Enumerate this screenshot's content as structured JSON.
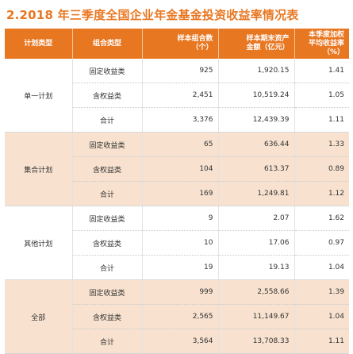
{
  "title": "2.2018 年三季度全国企业年金基金投资收益率情况表",
  "headers": {
    "plan_type": "计划类型",
    "portfolio_type": "组合类型",
    "count_line1": "样本组合数",
    "count_line2": "（个）",
    "assets_line1": "样本期末资产",
    "assets_line2": "金额（亿元）",
    "return_line1": "本季度加权",
    "return_line2": "平均收益率（%）"
  },
  "groups": [
    {
      "plan": "单一计划",
      "rows": [
        {
          "type": "固定收益类",
          "count": "925",
          "assets": "1,920.15",
          "return": "1.41"
        },
        {
          "type": "含权益类",
          "count": "2,451",
          "assets": "10,519.24",
          "return": "1.05"
        },
        {
          "type": "合计",
          "count": "3,376",
          "assets": "12,439.39",
          "return": "1.11"
        }
      ]
    },
    {
      "plan": "集合计划",
      "rows": [
        {
          "type": "固定收益类",
          "count": "65",
          "assets": "636.44",
          "return": "1.33"
        },
        {
          "type": "含权益类",
          "count": "104",
          "assets": "613.37",
          "return": "0.89"
        },
        {
          "type": "合计",
          "count": "169",
          "assets": "1,249.81",
          "return": "1.12"
        }
      ]
    },
    {
      "plan": "其他计划",
      "rows": [
        {
          "type": "固定收益类",
          "count": "9",
          "assets": "2.07",
          "return": "1.62"
        },
        {
          "type": "含权益类",
          "count": "10",
          "assets": "17.06",
          "return": "0.97"
        },
        {
          "type": "合计",
          "count": "19",
          "assets": "19.13",
          "return": "1.04"
        }
      ]
    },
    {
      "plan": "全部",
      "rows": [
        {
          "type": "固定收益类",
          "count": "999",
          "assets": "2,558.66",
          "return": "1.39"
        },
        {
          "type": "含权益类",
          "count": "2,565",
          "assets": "11,149.67",
          "return": "1.04"
        },
        {
          "type": "合计",
          "count": "3,564",
          "assets": "13,708.33",
          "return": "1.11"
        }
      ]
    }
  ],
  "colors": {
    "accent": "#e87722",
    "shaded_row": "#f8e2cf"
  }
}
